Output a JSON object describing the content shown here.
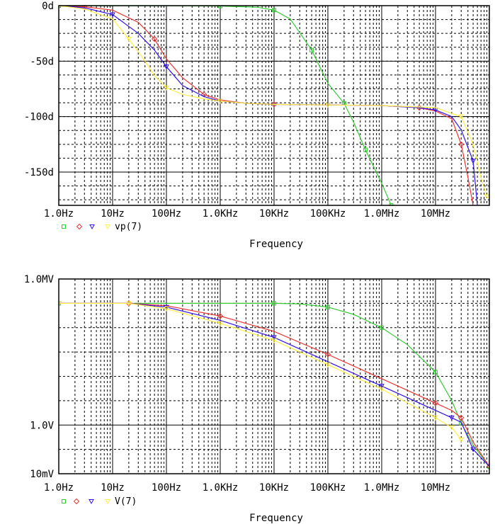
{
  "chart_data": [
    {
      "type": "line",
      "xlabel": "Frequency",
      "x_scale": "log",
      "xlim": [
        1,
        100000000
      ],
      "ylim": [
        -180,
        0
      ],
      "x_ticks": [
        {
          "value": 1,
          "label": "1.0Hz"
        },
        {
          "value": 10,
          "label": "10Hz"
        },
        {
          "value": 100,
          "label": "100Hz"
        },
        {
          "value": 1000,
          "label": "1.0KHz"
        },
        {
          "value": 10000,
          "label": "10KHz"
        },
        {
          "value": 100000,
          "label": "100KHz"
        },
        {
          "value": 1000000,
          "label": "1.0MHz"
        },
        {
          "value": 10000000,
          "label": "10MHz"
        }
      ],
      "y_ticks": [
        {
          "value": 0,
          "label": "0d"
        },
        {
          "value": -50,
          "label": "-50d"
        },
        {
          "value": -100,
          "label": "-100d"
        },
        {
          "value": -150,
          "label": "-150d"
        }
      ],
      "y_minor_step": 12.5,
      "legend_text": "vp(7)",
      "series": [
        {
          "color": "#33cc33",
          "marker": "square",
          "x": [
            1,
            100,
            1000,
            5000,
            10000,
            20000,
            50000,
            100000,
            200000,
            300000,
            500000,
            1000000,
            1500000
          ],
          "y": [
            0,
            0,
            -0.3,
            -1.5,
            -4,
            -12,
            -40,
            -70,
            -88,
            -105,
            -130,
            -160,
            -180
          ]
        },
        {
          "color": "#ee3333",
          "marker": "diamond",
          "x": [
            1,
            3,
            10,
            30,
            60,
            100,
            200,
            500,
            1000,
            3000,
            10000,
            100000,
            1000000,
            5000000,
            10000000,
            20000000,
            30000000,
            40000000,
            50000000
          ],
          "y": [
            0,
            -1,
            -4,
            -15,
            -30,
            -48,
            -65,
            -80,
            -85,
            -88,
            -89,
            -89.5,
            -90,
            -92,
            -95,
            -102,
            -125,
            -155,
            -180
          ]
        },
        {
          "color": "#3311ee",
          "marker": "triangle",
          "x": [
            1,
            3,
            10,
            30,
            60,
            100,
            200,
            500,
            1000,
            3000,
            10000,
            100000,
            1000000,
            5000000,
            10000000,
            20000000,
            30000000,
            50000000,
            60000000
          ],
          "y": [
            0,
            -2,
            -8,
            -25,
            -40,
            -55,
            -72,
            -82,
            -86,
            -88,
            -89,
            -89.5,
            -90,
            -92,
            -94,
            -100,
            -112,
            -140,
            -180
          ]
        },
        {
          "color": "#ffee44",
          "marker": "triangle",
          "x": [
            1,
            3,
            10,
            20,
            40,
            60,
            100,
            200,
            500,
            1000,
            3000,
            10000,
            100000,
            1000000,
            10000000,
            30000000,
            50000000,
            70000000,
            90000000
          ],
          "y": [
            0,
            -3,
            -12,
            -30,
            -50,
            -63,
            -74,
            -80,
            -84,
            -86,
            -88,
            -89,
            -89.5,
            -90,
            -92,
            -100,
            -125,
            -155,
            -172
          ]
        }
      ]
    },
    {
      "type": "line",
      "xlabel": "Frequency",
      "x_scale": "log",
      "y_scale": "log",
      "xlim": [
        1,
        100000000
      ],
      "ylim": [
        0.01,
        1000000
      ],
      "x_ticks": [
        {
          "value": 1,
          "label": "1.0Hz"
        },
        {
          "value": 10,
          "label": "10Hz"
        },
        {
          "value": 100,
          "label": "100Hz"
        },
        {
          "value": 1000,
          "label": "1.0KHz"
        },
        {
          "value": 10000,
          "label": "10KHz"
        },
        {
          "value": 100000,
          "label": "100KHz"
        },
        {
          "value": 1000000,
          "label": "1.0MHz"
        },
        {
          "value": 10000000,
          "label": "10MHz"
        }
      ],
      "y_ticks": [
        {
          "value": 1000000,
          "label": "1.0MV"
        },
        {
          "value": 1,
          "label": "1.0V"
        },
        {
          "value": 0.01,
          "label": "10mV"
        }
      ],
      "y_minor_decades": [
        0.1,
        10,
        100,
        1000,
        10000,
        100000
      ],
      "legend_text": "V(7)",
      "series": [
        {
          "color": "#33cc33",
          "marker": "square",
          "x": [
            1,
            1000,
            10000,
            30000,
            100000,
            300000,
            1000000,
            3000000,
            10000000,
            20000000,
            30000000,
            50000000,
            100000000
          ],
          "y": [
            100000,
            100000,
            100000,
            95000,
            70000,
            35000,
            10000,
            2000,
            150,
            10,
            1.2,
            0.15,
            0.02
          ]
        },
        {
          "color": "#ee3333",
          "marker": "diamond",
          "x": [
            1,
            20,
            100,
            1000,
            10000,
            100000,
            1000000,
            10000000,
            20000000,
            30000000,
            50000000,
            100000000
          ],
          "y": [
            100000,
            100000,
            80000,
            30000,
            7000,
            800,
            80,
            8,
            4,
            2,
            0.2,
            0.02
          ]
        },
        {
          "color": "#3311ee",
          "marker": "triangle",
          "x": [
            1,
            20,
            100,
            1000,
            10000,
            100000,
            1000000,
            10000000,
            20000000,
            30000000,
            50000000,
            100000000
          ],
          "y": [
            100000,
            100000,
            70000,
            20000,
            4000,
            400,
            40,
            4,
            2,
            1.3,
            0.1,
            0.02
          ]
        },
        {
          "color": "#ffee44",
          "marker": "triangle",
          "x": [
            1,
            20,
            100,
            1000,
            10000,
            100000,
            1000000,
            10000000,
            20000000,
            30000000
          ],
          "y": [
            100000,
            100000,
            60000,
            15000,
            3000,
            300,
            30,
            2,
            0.8,
            0.25
          ]
        }
      ]
    }
  ]
}
